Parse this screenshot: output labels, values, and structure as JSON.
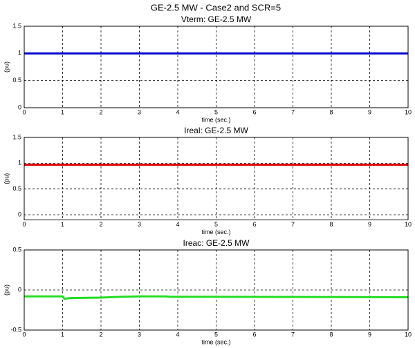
{
  "title": "GE-2.5 MW - Case2 and SCR=5",
  "chart_data": [
    {
      "type": "line",
      "title": "Vterm: GE-2.5 MW",
      "xlabel": "time (sec.)",
      "ylabel": "(pu)",
      "xlim": [
        0,
        10
      ],
      "xticks": [
        0,
        1,
        2,
        3,
        4,
        5,
        6,
        7,
        8,
        9,
        10
      ],
      "ylim": [
        0,
        1.5
      ],
      "yticks": [
        0,
        0.5,
        1,
        1.5
      ],
      "grid": true,
      "x": [
        0,
        1,
        1.05,
        2,
        5,
        10
      ],
      "series": [
        {
          "name": "Vterm",
          "color": "#0000cc",
          "values": [
            1,
            1,
            1,
            1,
            1,
            1
          ]
        }
      ]
    },
    {
      "type": "line",
      "title": "Ireal: GE-2.5 MW",
      "xlabel": "time (sec.)",
      "ylabel": "(pu)",
      "xlim": [
        0,
        10
      ],
      "xticks": [
        0,
        1,
        2,
        3,
        4,
        5,
        6,
        7,
        8,
        9,
        10
      ],
      "ylim": [
        -0.1,
        1.5
      ],
      "yticks": [
        0,
        0.5,
        1,
        1.5
      ],
      "grid": true,
      "x": [
        0,
        1,
        1.05,
        2,
        5,
        10
      ],
      "series": [
        {
          "name": "Ireal",
          "color": "#dd0000",
          "values": [
            0.97,
            0.97,
            0.97,
            0.97,
            0.97,
            0.97
          ]
        }
      ]
    },
    {
      "type": "line",
      "title": "Ireac: GE-2.5 MW",
      "xlabel": "time (sec.)",
      "ylabel": "(pu)",
      "xlim": [
        0,
        10
      ],
      "xticks": [
        0,
        1,
        2,
        3,
        4,
        5,
        6,
        7,
        8,
        9,
        10
      ],
      "ylim": [
        -0.5,
        0.5
      ],
      "yticks": [
        -0.5,
        0,
        0.5
      ],
      "grid": true,
      "x": [
        0,
        1,
        1.05,
        1.2,
        2,
        2.5,
        3,
        3.5,
        3.7,
        3.8,
        5,
        10
      ],
      "series": [
        {
          "name": "Ireac",
          "color": "#22dd22",
          "values": [
            -0.08,
            -0.08,
            -0.11,
            -0.1,
            -0.095,
            -0.085,
            -0.08,
            -0.08,
            -0.08,
            -0.085,
            -0.085,
            -0.09
          ]
        }
      ]
    }
  ]
}
